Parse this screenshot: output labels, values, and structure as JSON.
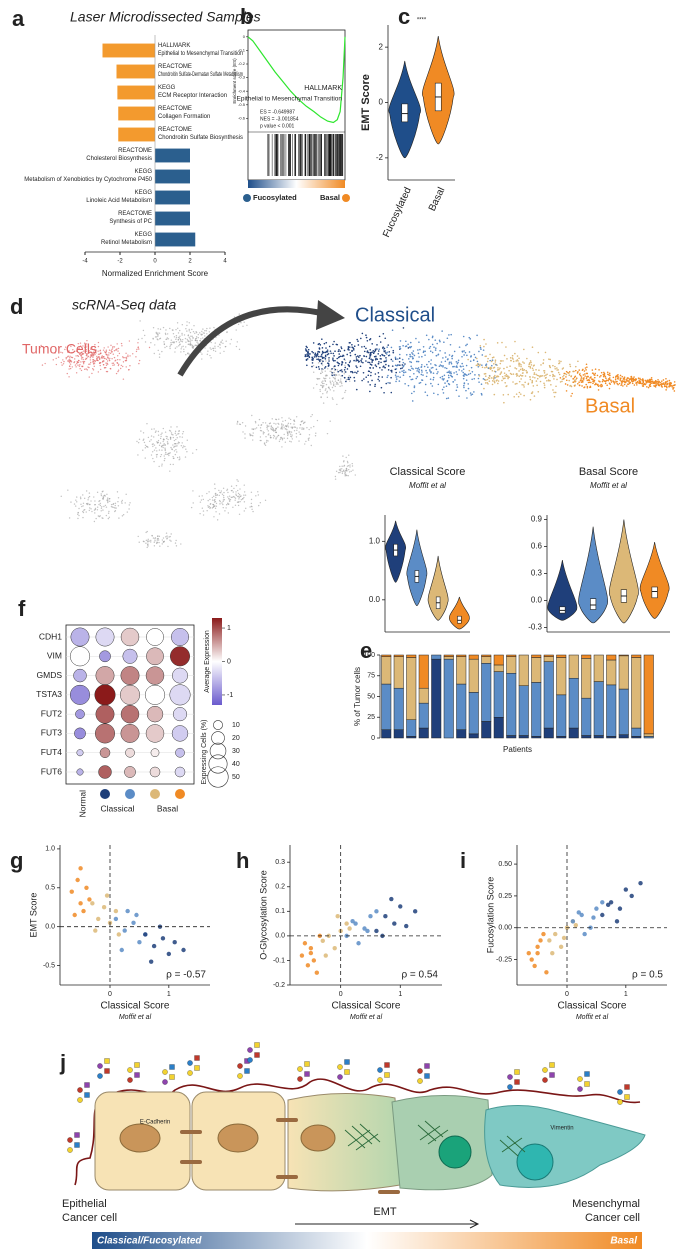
{
  "panel_labels": [
    "a",
    "b",
    "c",
    "d",
    "e",
    "f",
    "g",
    "h",
    "i",
    "j"
  ],
  "umap": {
    "title": "scRNA-Seq data",
    "tumor_label": "Tumor Cells",
    "classical_label": "Classical",
    "basal_label": "Basal"
  },
  "diagram": {
    "e_cadherin": "E-Cadherin",
    "vimentin": "Vimentin",
    "epithelial": [
      "Epithelial",
      "Cancer cell"
    ],
    "emt": "EMT",
    "mesenchymal": [
      "Mesenchymal",
      "Cancer cell"
    ],
    "gradient_left": "Classical/Fucosylated",
    "gradient_right": "Basal"
  },
  "chart_data": [
    {
      "type": "bar",
      "title": "Laser Microdissected Samples",
      "database": [
        "HALLMARK",
        "REACTOME",
        "KEGG",
        "REACTOME",
        "REACTOME",
        "REACTOME",
        "KEGG",
        "KEGG",
        "REACTOME",
        "KEGG"
      ],
      "categories": [
        "Epithelial to Mesenchymal Transition",
        "Chondroitin Sulfate-Dermatan Sulfate Metabolism",
        "ECM Receptor Interaction",
        "Collagen Formation",
        "Chondroitin Sulfate Biosynthesis",
        "Cholesterol Biosynthesis",
        "Metabolism of Xenobiotics by Cytochrome P450",
        "Linoleic Acid Metabolism",
        "Synthesis of PC",
        "Retinol Metabolism"
      ],
      "values": [
        -3.0,
        -2.2,
        -2.15,
        -2.1,
        -2.1,
        2.0,
        2.0,
        2.0,
        2.0,
        2.3
      ],
      "colors": [
        "#f39a2e",
        "#f39a2e",
        "#f39a2e",
        "#f39a2e",
        "#f39a2e",
        "#2b5f8e",
        "#2b5f8e",
        "#2b5f8e",
        "#2b5f8e",
        "#2b5f8e"
      ],
      "xlim": [
        -4,
        4
      ],
      "xticks": [
        -4,
        -2,
        0,
        2,
        4
      ],
      "xlabel": "Normalized Enrichment Score"
    },
    {
      "type": "line",
      "title": "HALLMARK",
      "subtitle": "Epithelial to Mesenchymal Transition",
      "ylabel": "Enrichment score (ES)",
      "x": [
        0,
        5,
        12,
        20,
        28,
        36,
        44,
        52,
        60,
        68,
        75,
        82,
        88,
        92,
        95,
        98,
        100
      ],
      "values": [
        0,
        -0.03,
        -0.1,
        -0.18,
        -0.26,
        -0.33,
        -0.4,
        -0.46,
        -0.51,
        -0.55,
        -0.59,
        -0.62,
        -0.63,
        -0.61,
        -0.55,
        -0.3,
        0
      ],
      "color": "#2ee62e",
      "xlim": [
        0,
        100
      ],
      "ylim": [
        -0.7,
        0.05
      ],
      "yticks": [
        0,
        -0.1,
        -0.2,
        -0.3,
        -0.4,
        -0.5,
        -0.6
      ],
      "annotations": [
        "ES = -0.649987",
        "NES = -3.001854",
        "p value < 0.001"
      ],
      "group_labels": [
        "Fucosylated",
        "Basal"
      ],
      "group_colors": [
        "#2b5f8e",
        "#f08a24"
      ]
    },
    {
      "type": "violin",
      "ylabel": "EMT Score",
      "annotation": "****",
      "categories": [
        "Fucosylated",
        "Basal"
      ],
      "colors": [
        "#1f4e8a",
        "#f08a24"
      ],
      "min": [
        -2.0,
        -1.5
      ],
      "q1": [
        -0.7,
        -0.3
      ],
      "median": [
        -0.4,
        0.2
      ],
      "q3": [
        -0.05,
        0.7
      ],
      "max": [
        1.5,
        2.4
      ],
      "ylim": [
        -2.8,
        2.8
      ],
      "yticks": [
        -2,
        0,
        2
      ]
    },
    {
      "type": "violin",
      "title": "Classical Score",
      "subtitle": "Moffit et al",
      "categories": [
        null,
        null,
        null,
        null
      ],
      "colors": [
        "#1f3f7a",
        "#5b8cc6",
        "#dcb877",
        "#f08a24"
      ],
      "min": [
        0.3,
        -0.1,
        -0.35,
        -0.5
      ],
      "q1": [
        0.75,
        0.3,
        -0.15,
        -0.4
      ],
      "median": [
        0.85,
        0.4,
        -0.05,
        -0.35
      ],
      "q3": [
        0.95,
        0.5,
        0.05,
        -0.28
      ],
      "max": [
        1.35,
        1.2,
        0.75,
        0.05
      ],
      "ylim": [
        -0.55,
        1.45
      ],
      "yticks": [
        {
          "value": 0,
          "label": "0.0"
        },
        {
          "value": 1,
          "label": "1.0"
        }
      ]
    },
    {
      "type": "violin",
      "title": "Basal Score",
      "subtitle": "Moffit et al",
      "categories": [
        null,
        null,
        null,
        null
      ],
      "colors": [
        "#1f3f7a",
        "#5b8cc6",
        "#dcb877",
        "#f08a24"
      ],
      "min": [
        -0.22,
        -0.25,
        -0.25,
        -0.2
      ],
      "q1": [
        -0.14,
        -0.1,
        -0.02,
        0.03
      ],
      "median": [
        -0.11,
        -0.05,
        0.05,
        0.1
      ],
      "q3": [
        -0.07,
        0.02,
        0.12,
        0.15
      ],
      "max": [
        0.45,
        0.82,
        0.9,
        0.65
      ],
      "ylim": [
        -0.35,
        0.95
      ],
      "yticks": [
        -0.3,
        {
          "value": 0,
          "label": "0.0"
        },
        0.3,
        0.6,
        0.9
      ]
    },
    {
      "type": "stacked_bar",
      "ylabel": "% of Tumor cells",
      "xlabel": "Patients",
      "categories": [
        null,
        null,
        null,
        null,
        null,
        null,
        null,
        null,
        null,
        null,
        null,
        null,
        null,
        null,
        null,
        null,
        null,
        null,
        null,
        null,
        null,
        null
      ],
      "series": [
        {
          "color": "#1f3f7a",
          "values": [
            10,
            10,
            2,
            12,
            95,
            0,
            10,
            5,
            20,
            25,
            3,
            3,
            2,
            12,
            2,
            12,
            3,
            3,
            2,
            4,
            2,
            0
          ]
        },
        {
          "color": "#5b8cc6",
          "values": [
            55,
            50,
            20,
            30,
            5,
            95,
            55,
            50,
            70,
            55,
            75,
            60,
            65,
            80,
            50,
            60,
            45,
            65,
            62,
            55,
            10,
            2
          ]
        },
        {
          "color": "#dcb877",
          "values": [
            33,
            38,
            75,
            18,
            0,
            3,
            33,
            40,
            8,
            8,
            20,
            37,
            30,
            6,
            45,
            28,
            48,
            32,
            30,
            40,
            85,
            3
          ]
        },
        {
          "color": "#f08a24",
          "values": [
            2,
            2,
            3,
            40,
            0,
            2,
            2,
            5,
            2,
            12,
            2,
            0,
            3,
            2,
            3,
            0,
            4,
            0,
            6,
            1,
            3,
            95
          ]
        }
      ],
      "ylim": [
        0,
        100
      ],
      "yticks": [
        0,
        25,
        50,
        75,
        100
      ]
    },
    {
      "type": "dot",
      "categories": [
        "CDH1",
        "VIM",
        "GMDS",
        "TSTA3",
        "FUT2",
        "FUT3",
        "FUT4",
        "FUT6"
      ],
      "columns": [
        "Normal",
        null,
        null,
        null,
        null
      ],
      "column_colors": [
        null,
        "#1f3f7a",
        "#5b8cc6",
        "#dcb877",
        "#f08a24"
      ],
      "groups": [
        "Classical",
        "Basal"
      ],
      "expression": [
        [
          -0.6,
          -0.3,
          0.3,
          0,
          -0.5
        ],
        [
          0,
          -0.8,
          -0.5,
          0.4,
          1.2
        ],
        [
          -0.6,
          0.5,
          0.7,
          0.6,
          -0.3
        ],
        [
          -0.9,
          1.3,
          0.3,
          0,
          -0.3
        ],
        [
          -0.8,
          0.9,
          0.8,
          0.4,
          -0.3
        ],
        [
          -0.9,
          0.8,
          0.6,
          0.3,
          -0.4
        ],
        [
          -0.4,
          0.6,
          0.2,
          0.1,
          -0.5
        ],
        [
          -0.6,
          0.9,
          0.4,
          0.2,
          -0.3
        ]
      ],
      "pct": [
        [
          40,
          40,
          38,
          35,
          36
        ],
        [
          45,
          15,
          25,
          35,
          45
        ],
        [
          20,
          40,
          40,
          38,
          28
        ],
        [
          45,
          50,
          45,
          45,
          50
        ],
        [
          10,
          40,
          38,
          30,
          22
        ],
        [
          15,
          45,
          40,
          38,
          30
        ],
        [
          5,
          12,
          10,
          8,
          10
        ],
        [
          5,
          20,
          15,
          12,
          12
        ]
      ],
      "color_label": "Average Expression",
      "color_lim": [
        -1.3,
        1.3
      ],
      "color_ticks": [
        1,
        0,
        -1
      ],
      "size_label": "Expressing Cells (%)",
      "size_ticks": [
        10,
        20,
        30,
        40,
        50
      ]
    },
    {
      "type": "scatter",
      "ylabel": "EMT Score",
      "xlabel": "Classical Score",
      "xlabel_note": "Moffit et al",
      "annotation": "ρ = -0.57",
      "vline": 0,
      "hline": 0,
      "xlim": [
        -0.85,
        1.7
      ],
      "xticks": [
        0,
        1
      ],
      "ylim": [
        -0.75,
        1.05
      ],
      "yticks": [
        -0.5,
        {
          "value": 0,
          "label": "0.0"
        },
        0.5,
        {
          "value": 1,
          "label": "1.0"
        }
      ],
      "series": [
        {
          "color": "#f08a24",
          "x": [
            -0.65,
            -0.55,
            -0.5,
            -0.45,
            -0.6,
            -0.4,
            -0.35,
            -0.5
          ],
          "values": [
            0.45,
            0.6,
            0.3,
            0.2,
            0.15,
            0.5,
            0.35,
            0.75
          ]
        },
        {
          "color": "#dcb877",
          "x": [
            -0.3,
            -0.2,
            -0.1,
            0,
            0.1,
            -0.25,
            0.15,
            -0.05
          ],
          "values": [
            0.3,
            0.1,
            0.25,
            0.05,
            0.2,
            -0.05,
            -0.1,
            0.4
          ]
        },
        {
          "color": "#5b8cc6",
          "x": [
            0.1,
            0.25,
            0.4,
            0.5,
            0.3,
            0.6,
            0.2,
            0.45
          ],
          "values": [
            0.1,
            -0.05,
            0.05,
            -0.2,
            0.2,
            -0.1,
            -0.3,
            0.15
          ]
        },
        {
          "color": "#1f3f7a",
          "x": [
            0.6,
            0.75,
            0.9,
            1.0,
            1.1,
            0.85,
            1.25,
            0.7
          ],
          "values": [
            -0.1,
            -0.25,
            -0.15,
            -0.35,
            -0.2,
            0.0,
            -0.3,
            -0.45
          ]
        }
      ]
    },
    {
      "type": "scatter",
      "ylabel": "O-Glycosylation Score",
      "xlabel": "Classical Score",
      "xlabel_note": "Moffit et al",
      "annotation": "ρ = 0.54",
      "vline": 0,
      "hline": 0,
      "xlim": [
        -0.85,
        1.7
      ],
      "xticks": [
        0,
        1
      ],
      "ylim": [
        -0.2,
        0.37
      ],
      "yticks": [
        -0.2,
        -0.1,
        {
          "value": 0,
          "label": "0.0"
        },
        0.1,
        0.2,
        0.3
      ],
      "series": [
        {
          "color": "#f08a24",
          "x": [
            -0.65,
            -0.55,
            -0.5,
            -0.45,
            -0.6,
            -0.4,
            -0.35,
            -0.5
          ],
          "values": [
            -0.08,
            -0.12,
            -0.05,
            -0.1,
            -0.03,
            -0.15,
            0.0,
            -0.07
          ]
        },
        {
          "color": "#dcb877",
          "x": [
            -0.3,
            -0.2,
            -0.1,
            0,
            0.1,
            -0.25,
            0.15,
            -0.05
          ],
          "values": [
            -0.02,
            0.0,
            -0.05,
            0.02,
            0.05,
            -0.08,
            0.03,
            0.08
          ]
        },
        {
          "color": "#5b8cc6",
          "x": [
            0.1,
            0.25,
            0.4,
            0.5,
            0.3,
            0.6,
            0.2,
            0.45
          ],
          "values": [
            0.0,
            0.05,
            0.03,
            0.08,
            -0.03,
            0.1,
            0.06,
            0.02
          ]
        },
        {
          "color": "#1f3f7a",
          "x": [
            0.6,
            0.75,
            0.9,
            1.0,
            1.1,
            0.85,
            1.25,
            0.7
          ],
          "values": [
            0.02,
            0.08,
            0.05,
            0.12,
            0.04,
            0.15,
            0.1,
            0.0
          ]
        }
      ]
    },
    {
      "type": "scatter",
      "ylabel": "Fucosylation Score",
      "xlabel": "Classical Score",
      "xlabel_note": "Moffit et al",
      "annotation": "ρ = 0.5",
      "vline": 0,
      "hline": 0,
      "xlim": [
        -0.85,
        1.7
      ],
      "xticks": [
        0,
        1
      ],
      "ylim": [
        -0.45,
        0.65
      ],
      "yticks": [
        -0.25,
        {
          "value": 0,
          "label": "0.00"
        },
        0.25,
        {
          "value": 0.5,
          "label": "0.50"
        }
      ],
      "series": [
        {
          "color": "#f08a24",
          "x": [
            -0.65,
            -0.55,
            -0.5,
            -0.45,
            -0.6,
            -0.4,
            -0.35,
            -0.5
          ],
          "values": [
            -0.2,
            -0.3,
            -0.15,
            -0.1,
            -0.25,
            -0.05,
            -0.35,
            -0.2
          ]
        },
        {
          "color": "#dcb877",
          "x": [
            -0.3,
            -0.2,
            -0.1,
            0,
            0.1,
            -0.25,
            0.15,
            -0.05
          ],
          "values": [
            -0.1,
            -0.05,
            -0.15,
            0.0,
            0.05,
            -0.2,
            0.02,
            -0.08
          ]
        },
        {
          "color": "#5b8cc6",
          "x": [
            0.1,
            0.25,
            0.4,
            0.5,
            0.3,
            0.6,
            0.2,
            0.45
          ],
          "values": [
            0.05,
            0.1,
            0.0,
            0.15,
            -0.05,
            0.2,
            0.12,
            0.08
          ]
        },
        {
          "color": "#1f3f7a",
          "x": [
            0.6,
            0.75,
            0.9,
            1.0,
            1.1,
            0.85,
            1.25,
            0.7
          ],
          "values": [
            0.1,
            0.2,
            0.15,
            0.3,
            0.25,
            0.05,
            0.35,
            0.18
          ]
        }
      ]
    }
  ]
}
